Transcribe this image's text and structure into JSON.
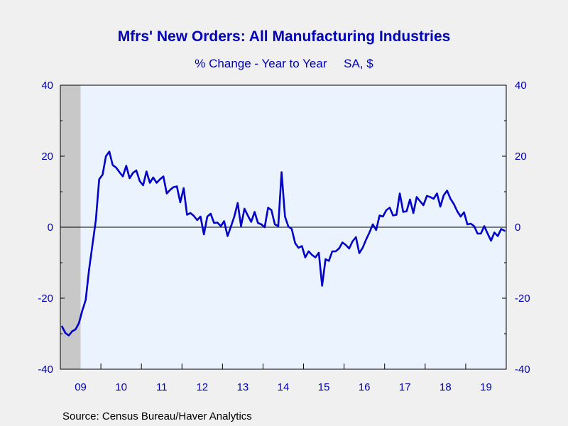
{
  "chart_data": {
    "type": "line",
    "title": "Mfrs' New Orders: All Manufacturing Industries",
    "subtitle": "% Change - Year to Year     SA, $",
    "source": "Source:  Census Bureau/Haver Analytics",
    "ylim": [
      -40,
      40
    ],
    "y_ticks": [
      "40",
      "20",
      "0",
      "-20",
      "-40"
    ],
    "y_tick_values": [
      40,
      20,
      0,
      -20,
      -40
    ],
    "x_ticks": [
      "09",
      "10",
      "11",
      "12",
      "13",
      "14",
      "15",
      "16",
      "17",
      "18",
      "19"
    ],
    "x_range": [
      "2009-01",
      "2019-12"
    ],
    "recession_shading": {
      "start": "2009-01",
      "end": "2009-06"
    },
    "grid": false,
    "zero_line": true,
    "colors": {
      "line": "#0000c8",
      "text": "#0000b8",
      "plot_bg": "#eaf3fe",
      "page_bg": "#f0f0f0",
      "recession": "#c8c8c8"
    },
    "series": [
      {
        "start": "2009-01",
        "values": [
          -28,
          -29.8,
          -30.5,
          -29.3,
          -28.8,
          -27,
          -23.5,
          -20.5,
          -12,
          -5,
          2,
          13.5,
          14.8,
          20,
          21.3,
          17.5,
          16.8,
          15.5,
          14.3,
          17.3,
          13.8,
          15.3,
          16,
          13,
          11.8,
          15.7,
          12.5,
          14,
          12.5,
          13.5,
          14.3,
          9.5,
          10.5,
          11.3,
          11.5,
          7,
          11,
          3.5,
          4,
          3.2,
          2,
          3,
          -2,
          3,
          3.8,
          1.2,
          1.3,
          0.3,
          1.7,
          -2.5,
          0.2,
          3,
          6.8,
          0.3,
          5.2,
          3.3,
          1.5,
          4.3,
          1.2,
          0.8,
          0,
          5.5,
          4.8,
          0.8,
          0.3,
          15.5,
          3,
          0.2,
          -0.5,
          -4.5,
          -5.8,
          -5.3,
          -8.5,
          -6.8,
          -7.8,
          -8.5,
          -7.2,
          -16.5,
          -9,
          -9.5,
          -6.8,
          -6.8,
          -6,
          -4.3,
          -5,
          -6,
          -4,
          -2.8,
          -7.3,
          -5.8,
          -3.5,
          -1.5,
          0.8,
          -0.8,
          3.3,
          3,
          4.8,
          5.5,
          3.3,
          3.5,
          9.5,
          4.3,
          4.5,
          7.8,
          4,
          8.5,
          7.3,
          6.2,
          8.8,
          8.5,
          8,
          9.5,
          5.8,
          9,
          10.3,
          8,
          6.5,
          4.5,
          3,
          4.2,
          0.8,
          1,
          0.3,
          -1.8,
          -1.8,
          0.3,
          -1.8,
          -3.8,
          -1.5,
          -2.5,
          -0.5,
          -1
        ]
      }
    ]
  }
}
